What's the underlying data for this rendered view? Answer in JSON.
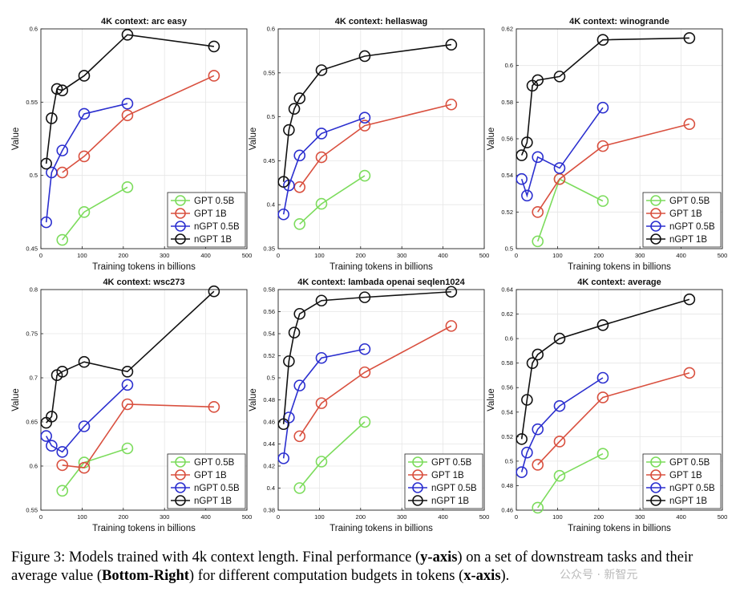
{
  "chart_data": [
    {
      "type": "line",
      "title": "4K context:  arc easy",
      "xlabel": "Training tokens in billions",
      "ylabel": "Value",
      "xlim": [
        0,
        500
      ],
      "ylim": [
        0.45,
        0.6
      ],
      "xticks": [
        0,
        100,
        200,
        300,
        400,
        500
      ],
      "yticks": [
        0.45,
        0.5,
        0.55,
        0.6
      ],
      "ytick_labels": [
        "0.45",
        "0.5",
        "0.55",
        "0.6"
      ],
      "legend": "bottom-right",
      "series": [
        {
          "name": "GPT 0.5B",
          "color": "#7cdc5c",
          "x": [
            52,
            105,
            210
          ],
          "y": [
            0.456,
            0.475,
            0.492
          ]
        },
        {
          "name": "GPT 1B",
          "color": "#d9503f",
          "x": [
            52,
            105,
            210,
            420
          ],
          "y": [
            0.502,
            0.513,
            0.541,
            0.568
          ]
        },
        {
          "name": "nGPT 0.5B",
          "color": "#2b2fcf",
          "x": [
            13,
            26,
            52,
            105,
            210
          ],
          "y": [
            0.468,
            0.502,
            0.517,
            0.542,
            0.549
          ]
        },
        {
          "name": "nGPT 1B",
          "color": "#111111",
          "x": [
            13,
            26,
            39,
            52,
            105,
            210,
            420
          ],
          "y": [
            0.508,
            0.539,
            0.559,
            0.558,
            0.568,
            0.596,
            0.588
          ]
        }
      ]
    },
    {
      "type": "line",
      "title": "4K context:  hellaswag",
      "xlabel": "Training tokens in billions",
      "ylabel": "Value",
      "xlim": [
        0,
        500
      ],
      "ylim": [
        0.35,
        0.6
      ],
      "xticks": [
        0,
        100,
        200,
        300,
        400,
        500
      ],
      "yticks": [
        0.35,
        0.4,
        0.45,
        0.5,
        0.55,
        0.6
      ],
      "ytick_labels": [
        "0.35",
        "0.4",
        "0.45",
        "0.5",
        "0.55",
        "0.6"
      ],
      "legend": "none",
      "series": [
        {
          "name": "GPT 0.5B",
          "color": "#7cdc5c",
          "x": [
            52,
            105,
            210
          ],
          "y": [
            0.378,
            0.401,
            0.433
          ]
        },
        {
          "name": "GPT 1B",
          "color": "#d9503f",
          "x": [
            52,
            105,
            210,
            420
          ],
          "y": [
            0.42,
            0.454,
            0.49,
            0.514
          ]
        },
        {
          "name": "nGPT 0.5B",
          "color": "#2b2fcf",
          "x": [
            13,
            26,
            52,
            105,
            210
          ],
          "y": [
            0.389,
            0.422,
            0.456,
            0.481,
            0.499
          ]
        },
        {
          "name": "nGPT 1B",
          "color": "#111111",
          "x": [
            13,
            26,
            39,
            52,
            105,
            210,
            420
          ],
          "y": [
            0.426,
            0.485,
            0.509,
            0.521,
            0.553,
            0.569,
            0.582
          ]
        }
      ]
    },
    {
      "type": "line",
      "title": "4K context:  winogrande",
      "xlabel": "Training tokens in billions",
      "ylabel": "Value",
      "xlim": [
        0,
        500
      ],
      "ylim": [
        0.5,
        0.62
      ],
      "xticks": [
        0,
        100,
        200,
        300,
        400,
        500
      ],
      "yticks": [
        0.5,
        0.52,
        0.54,
        0.56,
        0.58,
        0.6,
        0.62
      ],
      "ytick_labels": [
        "0.5",
        "0.52",
        "0.54",
        "0.56",
        "0.58",
        "0.6",
        "0.62"
      ],
      "legend": "bottom-right",
      "series": [
        {
          "name": "GPT 0.5B",
          "color": "#7cdc5c",
          "x": [
            52,
            105,
            210
          ],
          "y": [
            0.504,
            0.538,
            0.526
          ]
        },
        {
          "name": "GPT 1B",
          "color": "#d9503f",
          "x": [
            52,
            105,
            210,
            420
          ],
          "y": [
            0.52,
            0.538,
            0.556,
            0.568
          ]
        },
        {
          "name": "nGPT 0.5B",
          "color": "#2b2fcf",
          "x": [
            13,
            26,
            52,
            105,
            210
          ],
          "y": [
            0.538,
            0.529,
            0.55,
            0.544,
            0.577
          ]
        },
        {
          "name": "nGPT 1B",
          "color": "#111111",
          "x": [
            13,
            26,
            39,
            52,
            105,
            210,
            420
          ],
          "y": [
            0.551,
            0.558,
            0.589,
            0.592,
            0.594,
            0.614,
            0.615
          ]
        }
      ]
    },
    {
      "type": "line",
      "title": "4K context:  wsc273",
      "xlabel": "Training tokens in billions",
      "ylabel": "Value",
      "xlim": [
        0,
        500
      ],
      "ylim": [
        0.55,
        0.8
      ],
      "xticks": [
        0,
        100,
        200,
        300,
        400,
        500
      ],
      "yticks": [
        0.55,
        0.6,
        0.65,
        0.7,
        0.75,
        0.8
      ],
      "ytick_labels": [
        "0.55",
        "0.6",
        "0.65",
        "0.7",
        "0.75",
        "0.8"
      ],
      "legend": "bottom-right",
      "series": [
        {
          "name": "GPT 0.5B",
          "color": "#7cdc5c",
          "x": [
            52,
            105,
            210
          ],
          "y": [
            0.572,
            0.604,
            0.62
          ]
        },
        {
          "name": "GPT 1B",
          "color": "#d9503f",
          "x": [
            52,
            105,
            210,
            420
          ],
          "y": [
            0.601,
            0.598,
            0.67,
            0.667
          ]
        },
        {
          "name": "nGPT 0.5B",
          "color": "#2b2fcf",
          "x": [
            13,
            26,
            52,
            105,
            210
          ],
          "y": [
            0.634,
            0.623,
            0.616,
            0.645,
            0.692
          ]
        },
        {
          "name": "nGPT 1B",
          "color": "#111111",
          "x": [
            13,
            26,
            39,
            52,
            105,
            210,
            420
          ],
          "y": [
            0.649,
            0.656,
            0.703,
            0.707,
            0.718,
            0.707,
            0.798
          ]
        }
      ]
    },
    {
      "type": "line",
      "title": "4K context:  lambada openai seqlen1024",
      "xlabel": "Training tokens in billions",
      "ylabel": "Value",
      "xlim": [
        0,
        500
      ],
      "ylim": [
        0.38,
        0.58
      ],
      "xticks": [
        0,
        100,
        200,
        300,
        400,
        500
      ],
      "yticks": [
        0.38,
        0.4,
        0.42,
        0.44,
        0.46,
        0.48,
        0.5,
        0.52,
        0.54,
        0.56,
        0.58
      ],
      "ytick_labels": [
        "0.38",
        "0.4",
        "0.42",
        "0.44",
        "0.46",
        "0.48",
        "0.5",
        "0.52",
        "0.54",
        "0.56",
        "0.58"
      ],
      "legend": "bottom-right",
      "series": [
        {
          "name": "GPT 0.5B",
          "color": "#7cdc5c",
          "x": [
            52,
            105,
            210
          ],
          "y": [
            0.4,
            0.424,
            0.46
          ]
        },
        {
          "name": "GPT 1B",
          "color": "#d9503f",
          "x": [
            52,
            105,
            210,
            420
          ],
          "y": [
            0.447,
            0.477,
            0.505,
            0.547
          ]
        },
        {
          "name": "nGPT 0.5B",
          "color": "#2b2fcf",
          "x": [
            13,
            26,
            52,
            105,
            210
          ],
          "y": [
            0.427,
            0.464,
            0.493,
            0.518,
            0.526
          ]
        },
        {
          "name": "nGPT 1B",
          "color": "#111111",
          "x": [
            13,
            26,
            39,
            52,
            105,
            210,
            420
          ],
          "y": [
            0.458,
            0.515,
            0.541,
            0.558,
            0.57,
            0.573,
            0.578
          ]
        }
      ]
    },
    {
      "type": "line",
      "title": "4K context:  average",
      "xlabel": "Training tokens in billions",
      "ylabel": "Value",
      "xlim": [
        0,
        500
      ],
      "ylim": [
        0.46,
        0.64
      ],
      "xticks": [
        0,
        100,
        200,
        300,
        400,
        500
      ],
      "yticks": [
        0.46,
        0.48,
        0.5,
        0.52,
        0.54,
        0.56,
        0.58,
        0.6,
        0.62,
        0.64
      ],
      "ytick_labels": [
        "0.46",
        "0.48",
        "0.5",
        "0.52",
        "0.54",
        "0.56",
        "0.58",
        "0.6",
        "0.62",
        "0.64"
      ],
      "legend": "bottom-right",
      "series": [
        {
          "name": "GPT 0.5B",
          "color": "#7cdc5c",
          "x": [
            52,
            105,
            210
          ],
          "y": [
            0.462,
            0.488,
            0.506
          ]
        },
        {
          "name": "GPT 1B",
          "color": "#d9503f",
          "x": [
            52,
            105,
            210,
            420
          ],
          "y": [
            0.497,
            0.516,
            0.552,
            0.572
          ]
        },
        {
          "name": "nGPT 0.5B",
          "color": "#2b2fcf",
          "x": [
            13,
            26,
            52,
            105,
            210
          ],
          "y": [
            0.491,
            0.507,
            0.526,
            0.545,
            0.568
          ]
        },
        {
          "name": "nGPT 1B",
          "color": "#111111",
          "x": [
            13,
            26,
            39,
            52,
            105,
            210,
            420
          ],
          "y": [
            0.518,
            0.55,
            0.58,
            0.587,
            0.6,
            0.611,
            0.632
          ]
        }
      ]
    }
  ],
  "caption": {
    "lead": "Figure 3:  Models trained with 4k context length. Final performance (",
    "b1": "y-axis",
    "mid1": ") on a set of downstream tasks and their average value (",
    "b2": "Bottom-Right",
    "mid2": ") for different computation budgets in tokens (",
    "b3": "x-axis",
    "end": ")."
  },
  "watermark": "公众号 · 新智元"
}
